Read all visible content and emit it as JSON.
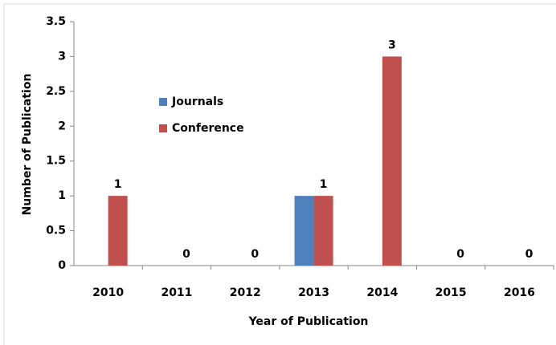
{
  "chart_data": {
    "type": "bar",
    "categories": [
      "2010",
      "2011",
      "2012",
      "2013",
      "2014",
      "2015",
      "2016"
    ],
    "series": [
      {
        "name": "Journals",
        "color": "#4f81bd",
        "values": [
          0,
          0,
          0,
          1,
          0,
          0,
          0
        ],
        "show_labels": false
      },
      {
        "name": "Conference",
        "color": "#c0504d",
        "values": [
          1,
          0,
          0,
          1,
          3,
          0,
          0
        ],
        "show_labels": true
      }
    ],
    "xlabel": "Year of Publication",
    "ylabel": "Number of Publication",
    "ylim": [
      0,
      3.5
    ],
    "yticks": [
      0,
      0.5,
      1,
      1.5,
      2,
      2.5,
      3,
      3.5
    ],
    "grid": false
  }
}
